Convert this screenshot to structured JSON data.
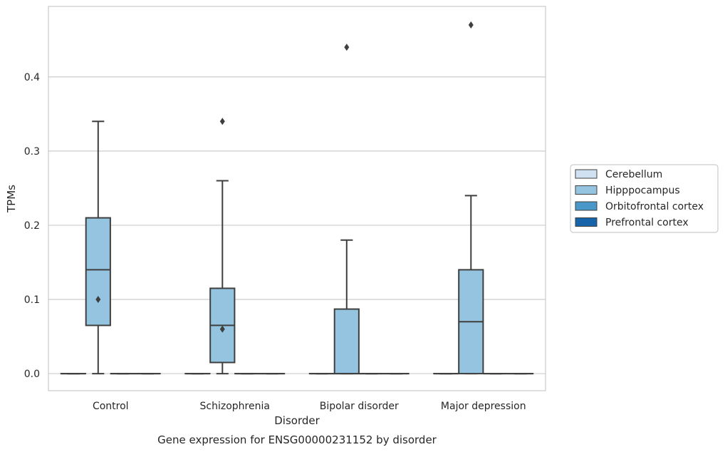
{
  "chart_data": {
    "type": "box",
    "xlabel": "Disorder",
    "ylabel": "TPMs",
    "caption": "Gene expression for ENSG00000231152 by disorder",
    "categories": [
      "Control",
      "Schizophrenia",
      "Bipolar disorder",
      "Major depression"
    ],
    "ylim": [
      -0.023,
      0.495
    ],
    "yticks": [
      0.0,
      0.1,
      0.2,
      0.3,
      0.4
    ],
    "ytick_labels": [
      "0.0",
      "0.1",
      "0.2",
      "0.3",
      "0.4"
    ],
    "grid": "horizontal",
    "legend_position": "right",
    "series": [
      {
        "name": "Cerebellum",
        "color": "#d0e1f2",
        "boxes": [
          {
            "category": "Control",
            "whislo": 0.0,
            "q1": 0.0,
            "med": 0.0,
            "q3": 0.0,
            "whishi": 0.0,
            "fliers": []
          },
          {
            "category": "Schizophrenia",
            "whislo": 0.0,
            "q1": 0.0,
            "med": 0.0,
            "q3": 0.0,
            "whishi": 0.0,
            "fliers": []
          },
          {
            "category": "Bipolar disorder",
            "whislo": 0.0,
            "q1": 0.0,
            "med": 0.0,
            "q3": 0.0,
            "whishi": 0.0,
            "fliers": []
          },
          {
            "category": "Major depression",
            "whislo": 0.0,
            "q1": 0.0,
            "med": 0.0,
            "q3": 0.0,
            "whishi": 0.0,
            "fliers": []
          }
        ]
      },
      {
        "name": "Hipppocampus",
        "color": "#94c4df",
        "boxes": [
          {
            "category": "Control",
            "whislo": 0.0,
            "q1": 0.065,
            "med": 0.14,
            "q3": 0.21,
            "whishi": 0.34,
            "fliers": [
              0.1
            ]
          },
          {
            "category": "Schizophrenia",
            "whislo": 0.0,
            "q1": 0.015,
            "med": 0.065,
            "q3": 0.115,
            "whishi": 0.26,
            "fliers": [
              0.06,
              0.34
            ]
          },
          {
            "category": "Bipolar disorder",
            "whislo": 0.0,
            "q1": 0.0,
            "med": 0.0,
            "q3": 0.087,
            "whishi": 0.18,
            "fliers": [
              0.44
            ]
          },
          {
            "category": "Major depression",
            "whislo": 0.0,
            "q1": 0.0,
            "med": 0.07,
            "q3": 0.14,
            "whishi": 0.24,
            "fliers": [
              0.47
            ]
          }
        ]
      },
      {
        "name": "Orbitofrontal cortex",
        "color": "#4a98c9",
        "boxes": [
          {
            "category": "Control",
            "whislo": 0.0,
            "q1": 0.0,
            "med": 0.0,
            "q3": 0.0,
            "whishi": 0.0,
            "fliers": []
          },
          {
            "category": "Schizophrenia",
            "whislo": 0.0,
            "q1": 0.0,
            "med": 0.0,
            "q3": 0.0,
            "whishi": 0.0,
            "fliers": []
          },
          {
            "category": "Bipolar disorder",
            "whislo": 0.0,
            "q1": 0.0,
            "med": 0.0,
            "q3": 0.0,
            "whishi": 0.0,
            "fliers": []
          },
          {
            "category": "Major depression",
            "whislo": 0.0,
            "q1": 0.0,
            "med": 0.0,
            "q3": 0.0,
            "whishi": 0.0,
            "fliers": []
          }
        ]
      },
      {
        "name": "Prefrontal cortex",
        "color": "#1764ab",
        "boxes": [
          {
            "category": "Control",
            "whislo": 0.0,
            "q1": 0.0,
            "med": 0.0,
            "q3": 0.0,
            "whishi": 0.0,
            "fliers": []
          },
          {
            "category": "Schizophrenia",
            "whislo": 0.0,
            "q1": 0.0,
            "med": 0.0,
            "q3": 0.0,
            "whishi": 0.0,
            "fliers": []
          },
          {
            "category": "Bipolar disorder",
            "whislo": 0.0,
            "q1": 0.0,
            "med": 0.0,
            "q3": 0.0,
            "whishi": 0.0,
            "fliers": []
          },
          {
            "category": "Major depression",
            "whislo": 0.0,
            "q1": 0.0,
            "med": 0.0,
            "q3": 0.0,
            "whishi": 0.0,
            "fliers": []
          }
        ]
      }
    ]
  }
}
